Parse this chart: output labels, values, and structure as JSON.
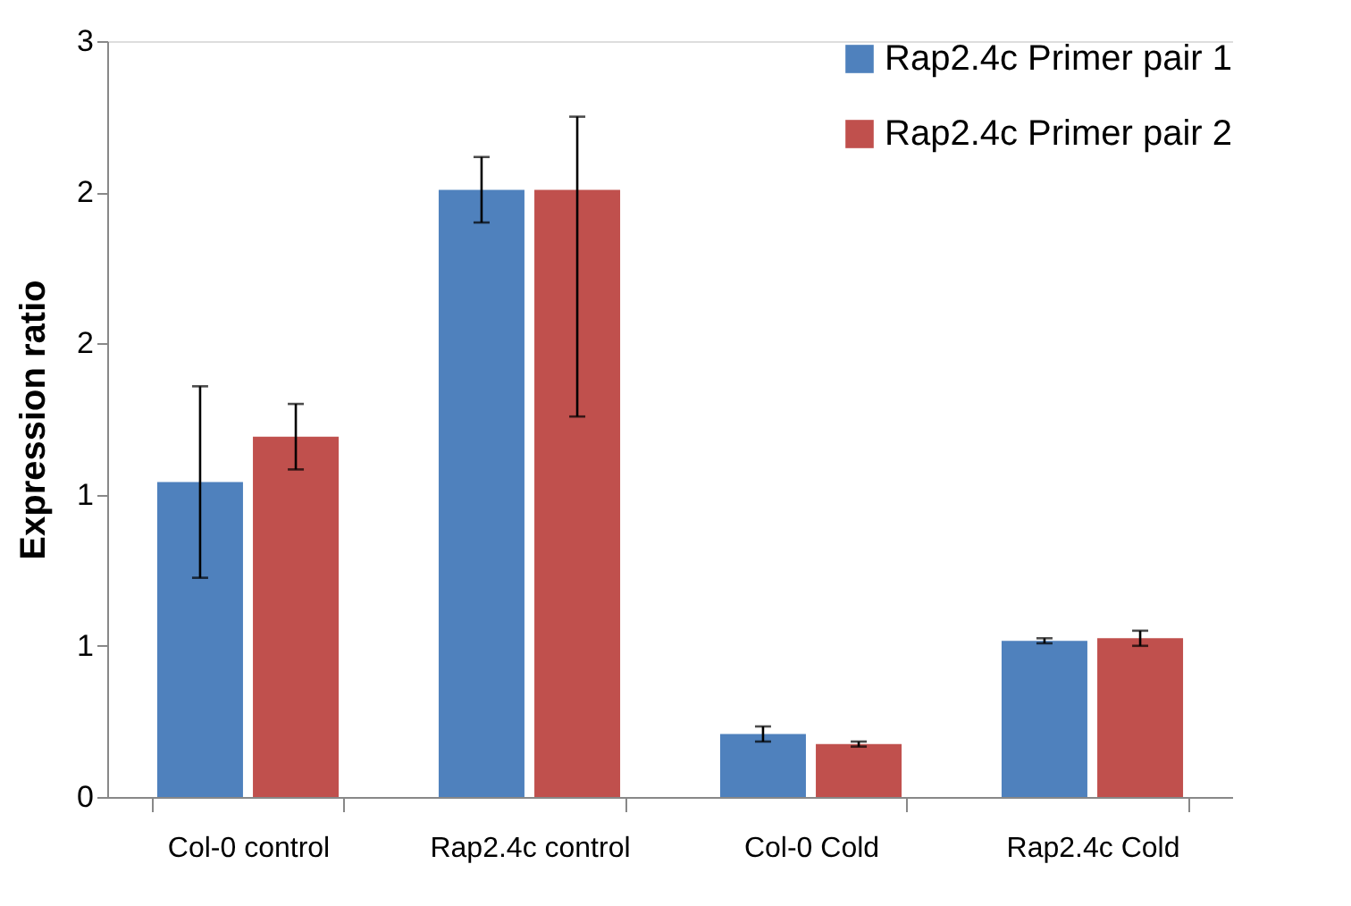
{
  "chart_data": {
    "type": "bar",
    "ylabel": "Expression ratio",
    "categories": [
      "Col-0 control",
      "Rap2.4c control",
      "Col-0 Cold",
      "Rap2.4c Cold"
    ],
    "series": [
      {
        "name": "Rap2.4c Primer pair 1",
        "color": "#4f81bd",
        "values": [
          1.25,
          2.41,
          0.25,
          0.62
        ],
        "errors": [
          0.38,
          0.13,
          0.03,
          0.01
        ]
      },
      {
        "name": "Rap2.4c Primer pair 2",
        "color": "#c0504d",
        "values": [
          1.43,
          2.41,
          0.21,
          0.63
        ],
        "errors": [
          0.13,
          [
            1.51,
            2.7
          ],
          0.01,
          0.03
        ]
      }
    ],
    "ylim": [
      0,
      3
    ],
    "yticks": [
      0,
      {
        "value": 0.6,
        "label": "1"
      },
      {
        "value": 1.2,
        "label": "1"
      },
      {
        "value": 1.8,
        "label": "2"
      },
      {
        "value": 2.4,
        "label": "2"
      },
      3
    ],
    "grid": false,
    "legend": "top right"
  }
}
